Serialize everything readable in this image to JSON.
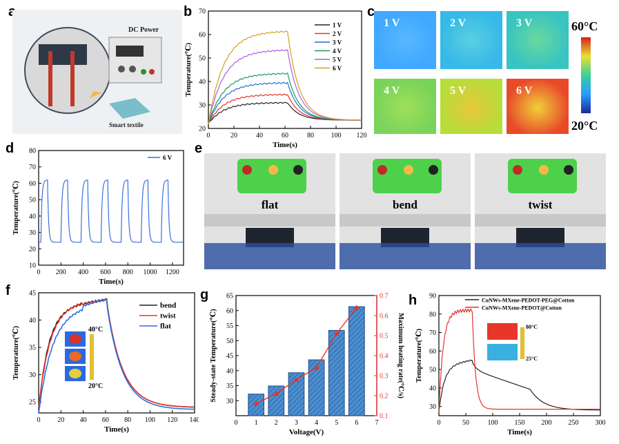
{
  "panel_labels": {
    "a": "a",
    "b": "b",
    "c": "c",
    "d": "d",
    "e": "e",
    "f": "f",
    "g": "g",
    "h": "h"
  },
  "panel_a": {
    "device_label": "DC Power",
    "textile_label": "Smart textile"
  },
  "panel_c": {
    "tiles": [
      "1 V",
      "2 V",
      "3 V",
      "4 V",
      "5 V",
      "6 V"
    ],
    "colorbar_max": "60°C",
    "colorbar_min": "20°C"
  },
  "panel_e": {
    "photo_labels": [
      "flat",
      "bend",
      "twist"
    ]
  },
  "panel_f_inset": {
    "max": "40°C",
    "min": "20°C"
  },
  "panel_h_inset": {
    "max": "80°C",
    "min": "25°C"
  },
  "chart_data": [
    {
      "panel": "b",
      "type": "line",
      "xlabel": "Time(s)",
      "ylabel": "Temperature(℃)",
      "xlim": [
        0,
        120
      ],
      "ylim": [
        20,
        70
      ],
      "xticks": [
        0,
        20,
        40,
        60,
        80,
        100,
        120
      ],
      "yticks": [
        20,
        30,
        40,
        50,
        60,
        70
      ],
      "legend": "top-right",
      "series": [
        {
          "name": "1 V",
          "color": "#222222",
          "steady": 31
        },
        {
          "name": "2 V",
          "color": "#e8322a",
          "steady": 34.5
        },
        {
          "name": "3 V",
          "color": "#1f6fd0",
          "steady": 39.5
        },
        {
          "name": "4 V",
          "color": "#1a9e5a",
          "steady": 43.5
        },
        {
          "name": "5 V",
          "color": "#b05ce0",
          "steady": 53.5
        },
        {
          "name": "6 V",
          "color": "#d4a017",
          "steady": 61.5
        }
      ]
    },
    {
      "panel": "d",
      "type": "line",
      "xlabel": "Time(s)",
      "ylabel": "Temperature(℃)",
      "xlim": [
        0,
        1300
      ],
      "ylim": [
        10,
        80
      ],
      "xticks": [
        0,
        200,
        400,
        600,
        800,
        1000,
        1200
      ],
      "yticks": [
        10,
        20,
        30,
        40,
        50,
        60,
        70,
        80
      ],
      "legend": "top-right",
      "series": [
        {
          "name": "6 V",
          "color": "#3a6fe0",
          "cycles": 7,
          "period": 180,
          "peak": 62,
          "base": 24
        }
      ]
    },
    {
      "panel": "f",
      "type": "line",
      "xlabel": "Time(s)",
      "ylabel": "Temperature(℃)",
      "xlim": [
        0,
        140
      ],
      "ylim": [
        23,
        45
      ],
      "xticks": [
        0,
        20,
        40,
        60,
        80,
        100,
        120,
        140
      ],
      "yticks": [
        25,
        30,
        35,
        40,
        45
      ],
      "legend": "top-right",
      "series": [
        {
          "name": "bend",
          "color": "#222222"
        },
        {
          "name": "twist",
          "color": "#e8322a"
        },
        {
          "name": "flat",
          "color": "#2b6fe0"
        }
      ]
    },
    {
      "panel": "g",
      "type": "bar",
      "xlabel": "Voltage(V)",
      "ylabel": "Steady-state Temperature(℃)",
      "ylabel_right": "Maximum heating rate(℃/s)",
      "categories": [
        1,
        2,
        3,
        4,
        5,
        6
      ],
      "values": [
        32.2,
        34.9,
        39.3,
        43.6,
        53.4,
        61.3
      ],
      "line_values": [
        0.16,
        0.21,
        0.28,
        0.34,
        0.51,
        0.64
      ],
      "xlim": [
        0,
        7
      ],
      "ylim": [
        25,
        65
      ],
      "ylim_right": [
        0.1,
        0.7
      ],
      "xticks": [
        0,
        1,
        2,
        3,
        4,
        5,
        6,
        7
      ],
      "yticks": [
        30,
        35,
        40,
        45,
        50,
        55,
        60,
        65
      ],
      "yticks_right": [
        0.1,
        0.2,
        0.3,
        0.4,
        0.5,
        0.6,
        0.7
      ],
      "bar_color": "#4a8fd0",
      "line_color": "#e8322a"
    },
    {
      "panel": "h",
      "type": "line",
      "xlabel": "Time(s)",
      "ylabel": "Temperature(℃)",
      "xlim": [
        0,
        300
      ],
      "ylim": [
        25,
        90
      ],
      "xticks": [
        0,
        50,
        100,
        150,
        200,
        250,
        300
      ],
      "yticks": [
        30,
        40,
        50,
        60,
        70,
        80,
        90
      ],
      "legend": "top-right",
      "series": [
        {
          "name": "CuNWs-MXene-PEDOT-PEG@Cotton",
          "color": "#222222"
        },
        {
          "name": "CuNWs-MXene-PEDOT@Cotton",
          "color": "#e8322a"
        }
      ]
    }
  ]
}
